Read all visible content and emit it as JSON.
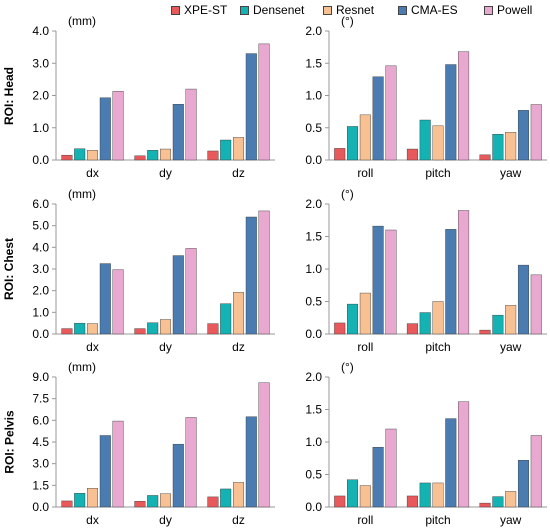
{
  "legend": {
    "entries": [
      "XPE-ST",
      "Densenet",
      "Resnet",
      "CMA-ES",
      "Powell"
    ],
    "colors": [
      "#E8595C",
      "#14B2B2",
      "#F7C193",
      "#4A7CB2",
      "#E9A8CF"
    ],
    "placement": "top"
  },
  "rows": [
    {
      "label": "ROI: Head"
    },
    {
      "label": "ROI: Chest"
    },
    {
      "label": "ROI: Pelvis"
    }
  ],
  "chart_data": [
    {
      "type": "bar",
      "row_label": "ROI: Head",
      "unit_label": "(mm)",
      "categories": [
        "dx",
        "dy",
        "dz"
      ],
      "ylim": [
        0,
        4.0
      ],
      "yticks": [
        "0.0",
        "1.0",
        "2.0",
        "3.0",
        "4.0"
      ],
      "series": [
        {
          "name": "XPE-ST",
          "values": [
            0.15,
            0.13,
            0.28
          ]
        },
        {
          "name": "Densenet",
          "values": [
            0.35,
            0.3,
            0.62
          ]
        },
        {
          "name": "Resnet",
          "values": [
            0.3,
            0.34,
            0.7
          ]
        },
        {
          "name": "CMA-ES",
          "values": [
            1.93,
            1.73,
            3.3
          ]
        },
        {
          "name": "Powell",
          "values": [
            2.13,
            2.2,
            3.6
          ]
        }
      ]
    },
    {
      "type": "bar",
      "row_label": "ROI: Head",
      "unit_label": "(°)",
      "categories": [
        "roll",
        "pitch",
        "yaw"
      ],
      "ylim": [
        0,
        2.0
      ],
      "yticks": [
        "0.0",
        "0.5",
        "1.0",
        "1.5",
        "2.0"
      ],
      "series": [
        {
          "name": "XPE-ST",
          "values": [
            0.18,
            0.17,
            0.08
          ]
        },
        {
          "name": "Densenet",
          "values": [
            0.52,
            0.62,
            0.4
          ]
        },
        {
          "name": "Resnet",
          "values": [
            0.7,
            0.53,
            0.43
          ]
        },
        {
          "name": "CMA-ES",
          "values": [
            1.29,
            1.48,
            0.77
          ]
        },
        {
          "name": "Powell",
          "values": [
            1.46,
            1.68,
            0.86
          ]
        }
      ]
    },
    {
      "type": "bar",
      "row_label": "ROI: Chest",
      "unit_label": "(mm)",
      "categories": [
        "dx",
        "dy",
        "dz"
      ],
      "ylim": [
        0,
        6.0
      ],
      "yticks": [
        "0.0",
        "1.0",
        "2.0",
        "3.0",
        "4.0",
        "5.0",
        "6.0"
      ],
      "series": [
        {
          "name": "XPE-ST",
          "values": [
            0.25,
            0.25,
            0.48
          ]
        },
        {
          "name": "Densenet",
          "values": [
            0.5,
            0.52,
            1.4
          ]
        },
        {
          "name": "Resnet",
          "values": [
            0.48,
            0.67,
            1.92
          ]
        },
        {
          "name": "CMA-ES",
          "values": [
            3.25,
            3.62,
            5.4
          ]
        },
        {
          "name": "Powell",
          "values": [
            2.97,
            3.95,
            5.68
          ]
        }
      ]
    },
    {
      "type": "bar",
      "row_label": "ROI: Chest",
      "unit_label": "(°)",
      "categories": [
        "roll",
        "pitch",
        "yaw"
      ],
      "ylim": [
        0,
        2.0
      ],
      "yticks": [
        "0.0",
        "0.5",
        "1.0",
        "1.5",
        "2.0"
      ],
      "series": [
        {
          "name": "XPE-ST",
          "values": [
            0.17,
            0.16,
            0.06
          ]
        },
        {
          "name": "Densenet",
          "values": [
            0.46,
            0.33,
            0.29
          ]
        },
        {
          "name": "Resnet",
          "values": [
            0.63,
            0.5,
            0.44
          ]
        },
        {
          "name": "CMA-ES",
          "values": [
            1.66,
            1.61,
            1.06
          ]
        },
        {
          "name": "Powell",
          "values": [
            1.6,
            1.9,
            0.91
          ]
        }
      ]
    },
    {
      "type": "bar",
      "row_label": "ROI: Pelvis",
      "unit_label": "(mm)",
      "categories": [
        "dx",
        "dy",
        "dz"
      ],
      "ylim": [
        0,
        9.0
      ],
      "yticks": [
        "0.0",
        "1.5",
        "3.0",
        "4.5",
        "6.0",
        "7.5",
        "9.0"
      ],
      "series": [
        {
          "name": "XPE-ST",
          "values": [
            0.42,
            0.4,
            0.7
          ]
        },
        {
          "name": "Densenet",
          "values": [
            0.95,
            0.8,
            1.25
          ]
        },
        {
          "name": "Resnet",
          "values": [
            1.3,
            0.92,
            1.7
          ]
        },
        {
          "name": "CMA-ES",
          "values": [
            4.95,
            4.35,
            6.25
          ]
        },
        {
          "name": "Powell",
          "values": [
            5.95,
            6.2,
            8.6
          ]
        }
      ]
    },
    {
      "type": "bar",
      "row_label": "ROI: Pelvis",
      "unit_label": "(°)",
      "categories": [
        "roll",
        "pitch",
        "yaw"
      ],
      "ylim": [
        0,
        2.0
      ],
      "yticks": [
        "0.0",
        "0.5",
        "1.0",
        "1.5",
        "2.0"
      ],
      "series": [
        {
          "name": "XPE-ST",
          "values": [
            0.17,
            0.17,
            0.06
          ]
        },
        {
          "name": "Densenet",
          "values": [
            0.42,
            0.37,
            0.16
          ]
        },
        {
          "name": "Resnet",
          "values": [
            0.33,
            0.37,
            0.24
          ]
        },
        {
          "name": "CMA-ES",
          "values": [
            0.92,
            1.36,
            0.72
          ]
        },
        {
          "name": "Powell",
          "values": [
            1.2,
            1.62,
            1.1
          ]
        }
      ]
    }
  ]
}
